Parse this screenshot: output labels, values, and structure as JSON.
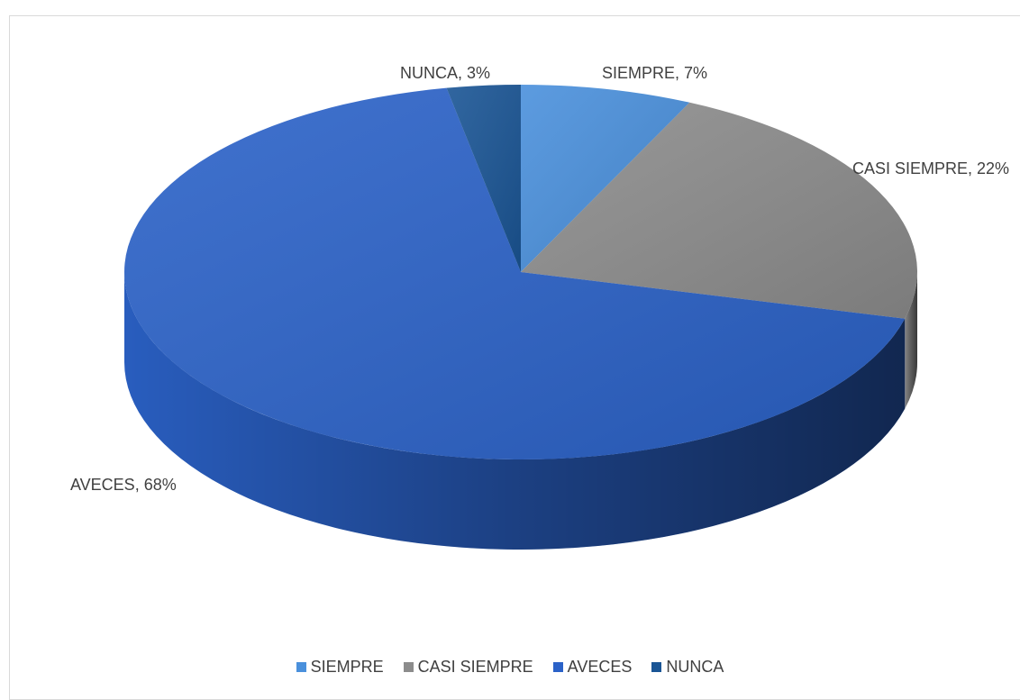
{
  "chart_data": {
    "type": "pie",
    "title": "",
    "categories": [
      "SIEMPRE",
      "CASI SIEMPRE",
      "AVECES",
      "NUNCA"
    ],
    "values": [
      7,
      22,
      68,
      3
    ],
    "data_labels": [
      "SIEMPRE, 7%",
      "CASI SIEMPRE, 22%",
      "AVECES, 68%",
      "NUNCA, 3%"
    ],
    "colors": [
      "#4a90dc",
      "#8c8c8c",
      "#2b62c8",
      "#1a5595"
    ],
    "legend_position": "bottom",
    "style": "3d"
  }
}
